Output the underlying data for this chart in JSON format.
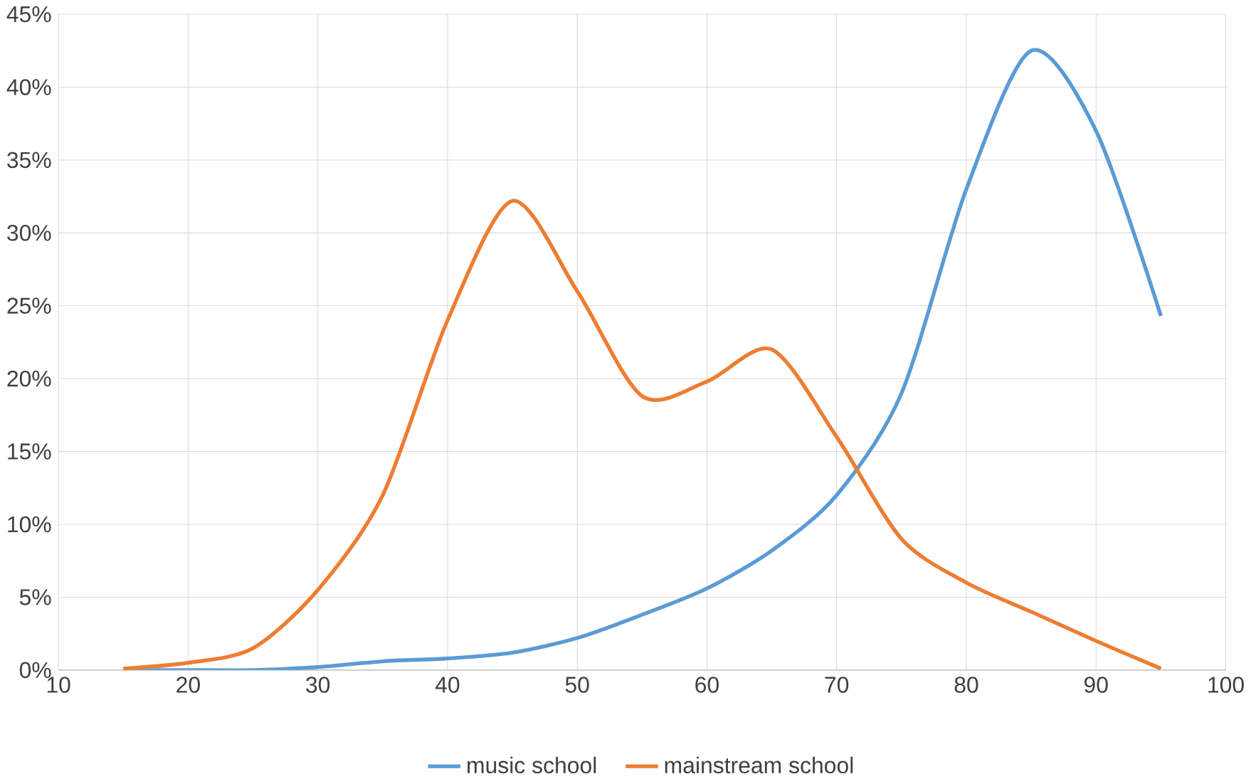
{
  "chart_data": {
    "type": "line",
    "x": [
      15,
      20,
      25,
      30,
      35,
      40,
      45,
      50,
      55,
      60,
      65,
      70,
      75,
      80,
      85,
      90,
      95
    ],
    "series": [
      {
        "name": "music school",
        "color": "#5b9bd5",
        "values": [
          0,
          0,
          0,
          0.2,
          0.6,
          0.8,
          1.2,
          2.2,
          3.8,
          5.6,
          8.2,
          12,
          19,
          33,
          42.5,
          37,
          24.3
        ]
      },
      {
        "name": "mainstream school",
        "color": "#ed7d31",
        "values": [
          0.1,
          0.5,
          1.5,
          5.5,
          12,
          24,
          32.2,
          26,
          18.8,
          19.8,
          22,
          16,
          9,
          6,
          4,
          2,
          0.1
        ]
      }
    ],
    "xlim": [
      10,
      100
    ],
    "xticks": [
      10,
      20,
      30,
      40,
      50,
      60,
      70,
      80,
      90,
      100
    ],
    "ylim": [
      0,
      45
    ],
    "yticks": [
      {
        "value": 0,
        "label": "0%"
      },
      {
        "value": 5,
        "label": "5%"
      },
      {
        "value": 10,
        "label": "10%"
      },
      {
        "value": 15,
        "label": "15%"
      },
      {
        "value": 20,
        "label": "20%"
      },
      {
        "value": 25,
        "label": "25%"
      },
      {
        "value": 30,
        "label": "30%"
      },
      {
        "value": 35,
        "label": "35%"
      },
      {
        "value": 40,
        "label": "40%"
      },
      {
        "value": 45,
        "label": "45%"
      }
    ],
    "grid": true,
    "legend": "bottom",
    "marker": "none",
    "line_style": "solid"
  }
}
